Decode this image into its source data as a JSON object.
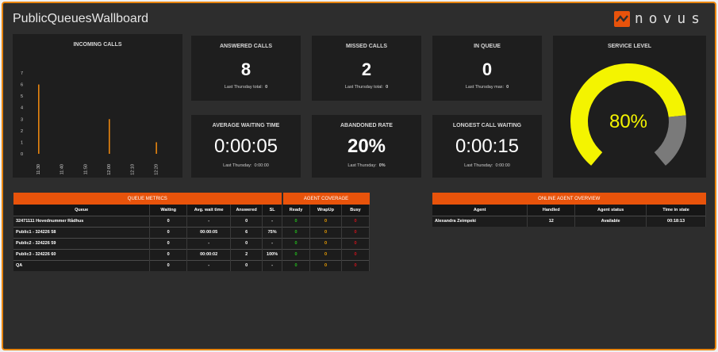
{
  "header": {
    "title": "PublicQueuesWallboard",
    "logo_text": "novus",
    "brand_color": "#e8530b"
  },
  "incoming": {
    "title": "INCOMING CALLS",
    "bar_color": "#e8850f",
    "chart_data": {
      "type": "bar",
      "title": "INCOMING CALLS",
      "y_ticks": [
        "0",
        "1",
        "2",
        "3",
        "4",
        "5",
        "6",
        "7"
      ],
      "ylim": [
        0,
        7
      ],
      "x_ticks": [
        "11:30",
        "11:40",
        "11:50",
        "12:00",
        "12:10",
        "12:20"
      ],
      "bars": [
        {
          "x": "11:30",
          "value": 6
        },
        {
          "x": "12:00",
          "value": 3
        },
        {
          "x": "12:20",
          "value": 1
        }
      ]
    }
  },
  "answered": {
    "title": "ANSWERED CALLS",
    "value": "8",
    "sub": "Last Thursday total:",
    "sub_value": "0"
  },
  "missed": {
    "title": "MISSED CALLS",
    "value": "2",
    "sub": "Last Thursday total:",
    "sub_value": "0"
  },
  "inqueue": {
    "title": "IN QUEUE",
    "value": "0",
    "sub": "Last Thursday max:",
    "sub_value": "0"
  },
  "avgwait": {
    "title": "AVERAGE WAITING TIME",
    "value": "0:00:05",
    "sub": "Last Thursday:",
    "sub_value": "0:00:00"
  },
  "abandon": {
    "title": "ABANDONED RATE",
    "value": "20%",
    "sub": "Last Thursday:",
    "sub_value": "0%"
  },
  "longest": {
    "title": "LONGEST CALL WAITING",
    "value": "0:00:15",
    "sub": "Last Thursday:",
    "sub_value": "0:00:00"
  },
  "service": {
    "title": "SERVICE LEVEL",
    "value": "80%",
    "level": 0.8,
    "fill_color": "#f4f400",
    "rest_color": "#7a7a7a"
  },
  "queue_metrics": {
    "title": "QUEUE METRICS",
    "coverage_title": "AGENT COVERAGE",
    "columns": [
      "Queue",
      "Waiting",
      "Avg. wait time",
      "Answered",
      "SL",
      "Ready",
      "WrapUp",
      "Busy"
    ],
    "rows": [
      {
        "queue": "32471111 Hovednummer Rådhus",
        "waiting": "0",
        "avg": "-",
        "answered": "0",
        "sl": "-",
        "ready": "0",
        "wrapup": "0",
        "busy": "0"
      },
      {
        "queue": "Public1 - 324226 58",
        "waiting": "0",
        "avg": "00:00:05",
        "answered": "6",
        "sl": "75%",
        "ready": "0",
        "wrapup": "0",
        "busy": "0"
      },
      {
        "queue": "Public2 - 324226 59",
        "waiting": "0",
        "avg": "-",
        "answered": "0",
        "sl": "-",
        "ready": "0",
        "wrapup": "0",
        "busy": "0"
      },
      {
        "queue": "Public3 - 324226 60",
        "waiting": "0",
        "avg": "00:00:02",
        "answered": "2",
        "sl": "100%",
        "ready": "0",
        "wrapup": "0",
        "busy": "0"
      },
      {
        "queue": "QA",
        "waiting": "0",
        "avg": "-",
        "answered": "0",
        "sl": "-",
        "ready": "0",
        "wrapup": "0",
        "busy": "0"
      }
    ]
  },
  "agent_overview": {
    "title": "ONLINE AGENT OVERVIEW",
    "columns": [
      "Agent",
      "Handled",
      "Agent status",
      "Time in state"
    ],
    "rows": [
      {
        "agent": "Alexandra Zeimpeki",
        "handled": "12",
        "status": "Available",
        "time": "00:18:13"
      }
    ]
  }
}
